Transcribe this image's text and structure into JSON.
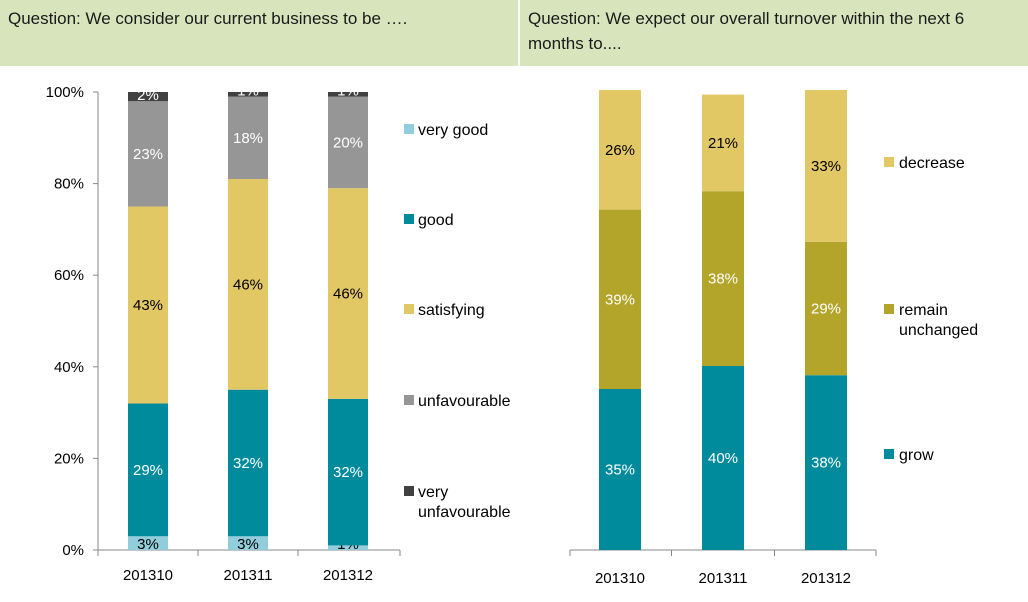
{
  "questions": {
    "left": "Question: We consider our current business to be ….",
    "right": "Question: We expect our overall turnover within the next 6 months to...."
  },
  "chart_data": [
    {
      "type": "bar",
      "stacked": true,
      "categories": [
        "201310",
        "201311",
        "201312"
      ],
      "ylim": [
        0,
        100
      ],
      "yticks": [
        "0%",
        "20%",
        "40%",
        "60%",
        "80%",
        "100%"
      ],
      "legend_position": "right",
      "series": [
        {
          "name": "very good",
          "color": "#92cddc",
          "values": [
            3,
            3,
            1
          ],
          "labels": [
            "3%",
            "3%",
            "1%"
          ],
          "label_color": "#000000"
        },
        {
          "name": "good",
          "color": "#008b9c",
          "values": [
            29,
            32,
            32
          ],
          "labels": [
            "29%",
            "32%",
            "32%"
          ],
          "label_color": "#ffffff"
        },
        {
          "name": "satisfying",
          "color": "#e2c765",
          "values": [
            43,
            46,
            46
          ],
          "labels": [
            "43%",
            "46%",
            "46%"
          ],
          "label_color": "#000000"
        },
        {
          "name": "unfavourable",
          "color": "#969696",
          "values": [
            23,
            18,
            20
          ],
          "labels": [
            "23%",
            "18%",
            "20%"
          ],
          "label_color": "#ffffff"
        },
        {
          "name": "very unfavourable",
          "color": "#404040",
          "values": [
            2,
            1,
            1
          ],
          "labels": [
            "2%",
            "1%",
            "1%"
          ],
          "label_color": "#ffffff"
        }
      ]
    },
    {
      "type": "bar",
      "stacked": true,
      "categories": [
        "201310",
        "201311",
        "201312"
      ],
      "ylim": [
        0,
        100
      ],
      "legend_position": "right",
      "series": [
        {
          "name": "grow",
          "color": "#008b9c",
          "values": [
            35,
            40,
            38
          ],
          "labels": [
            "35%",
            "40%",
            "38%"
          ],
          "label_color": "#ffffff"
        },
        {
          "name": "remain unchanged",
          "color": "#b3a42a",
          "values": [
            39,
            38,
            29
          ],
          "labels": [
            "39%",
            "38%",
            "29%"
          ],
          "label_color": "#ffffff"
        },
        {
          "name": "decrease",
          "color": "#e2c765",
          "values": [
            26,
            21,
            33
          ],
          "labels": [
            "26%",
            "21%",
            "33%"
          ],
          "label_color": "#000000"
        }
      ]
    }
  ]
}
